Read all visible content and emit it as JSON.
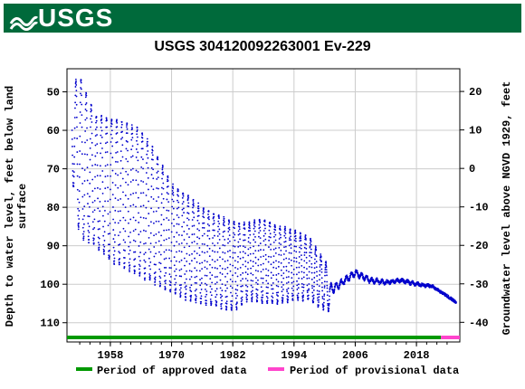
{
  "header": {
    "logo_text": "USGS",
    "color": "#006a3b"
  },
  "chart_data": {
    "type": "scatter",
    "title": "USGS 304120092263001 Ev-229",
    "ylabel_left": [
      "Depth to water level, feet below land",
      "surface"
    ],
    "ylabel_right": "Groundwater level above NGVD 1929, feet",
    "x_ticks": [
      "1958",
      "1970",
      "1982",
      "1994",
      "2006",
      "2018"
    ],
    "x_tick_values": [
      1958,
      1970,
      1982,
      1994,
      2006,
      2018
    ],
    "xlim": [
      1949.5,
      2026.5
    ],
    "y_left_ticks": [
      50,
      60,
      70,
      80,
      90,
      100,
      110
    ],
    "y_left_lim": [
      44,
      115
    ],
    "y_right_ticks": [
      20,
      10,
      0,
      -10,
      -20,
      -30,
      -40
    ],
    "grid": true,
    "series_color": "#0000cc",
    "approx_profile": {
      "years": [
        1950.5,
        1952,
        1955,
        1958,
        1961,
        1964,
        1967,
        1970,
        1973,
        1976,
        1979,
        1982,
        1985,
        1988,
        1991,
        1994,
        1997,
        1999,
        2001,
        2003,
        2006,
        2009,
        2012,
        2015,
        2018,
        2021,
        2024,
        2026
      ],
      "upper_depth": [
        48,
        46,
        56,
        57,
        58,
        60,
        66,
        74,
        77,
        80,
        82,
        84,
        84,
        83,
        85,
        86,
        88,
        92,
        96,
        97,
        94,
        97,
        98,
        98,
        99,
        100,
        103,
        105
      ],
      "lower_depth": [
        72,
        88,
        90,
        94,
        96,
        98,
        100,
        102,
        104,
        105,
        106,
        107,
        104,
        105,
        105,
        104,
        104,
        106,
        107,
        103,
        100,
        101,
        101,
        100,
        101,
        101,
        103,
        105
      ]
    },
    "periods": [
      {
        "label": "Period of approved data",
        "color": "#009900",
        "start": 1949.5,
        "end": 2022.8
      },
      {
        "label": "Period of provisional data",
        "color": "#ff44cc",
        "start": 2022.8,
        "end": 2026.5
      }
    ]
  }
}
